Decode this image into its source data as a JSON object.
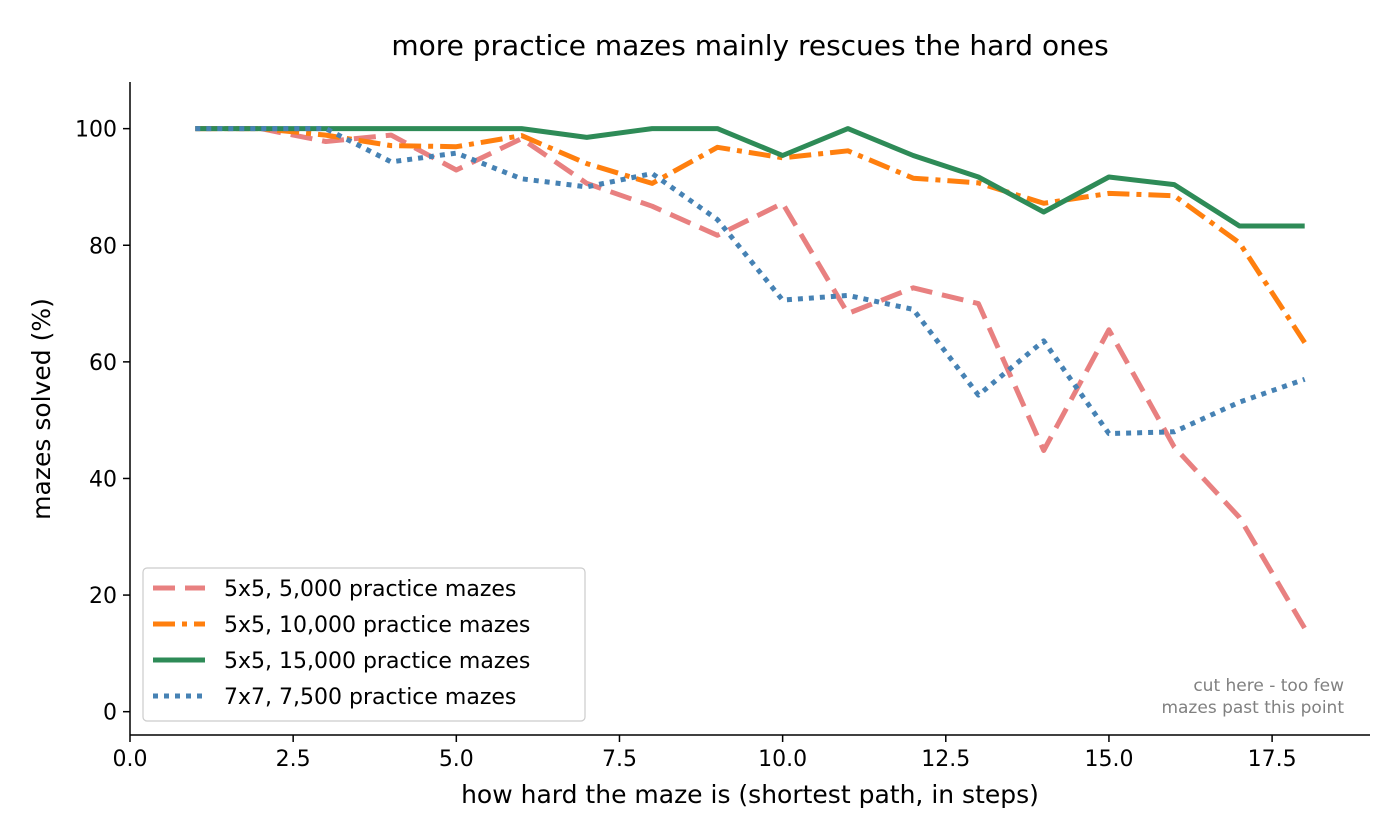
{
  "chart_data": {
    "type": "line",
    "title": "more practice mazes mainly rescues the hard ones",
    "xlabel": "how hard the maze is (shortest path, in steps)",
    "ylabel": "mazes solved (%)",
    "xlim": [
      0,
      19
    ],
    "ylim": [
      -4,
      108
    ],
    "xticks": [
      0,
      2.5,
      5,
      7.5,
      10,
      12.5,
      15,
      17.5
    ],
    "xtick_labels": [
      "0.0",
      "2.5",
      "5.0",
      "7.5",
      "10.0",
      "12.5",
      "15.0",
      "17.5"
    ],
    "yticks": [
      0,
      20,
      40,
      60,
      80,
      100
    ],
    "ytick_labels": [
      "0",
      "20",
      "40",
      "60",
      "80",
      "100"
    ],
    "grid": false,
    "legend_position": "lower-left",
    "x": [
      1,
      2,
      3,
      4,
      5,
      6,
      7,
      8,
      9,
      10,
      11,
      12,
      13,
      14,
      15,
      16,
      17,
      18
    ],
    "series": [
      {
        "name": "5x5, 5,000 practice mazes",
        "color": "#e88080",
        "style": "dashed",
        "values": [
          100,
          100,
          97.8,
          98.9,
          92.9,
          98.3,
          90.6,
          86.7,
          81.7,
          87.2,
          68.3,
          72.7,
          70,
          44.8,
          65.5,
          45.4,
          33.3,
          14.3
        ]
      },
      {
        "name": "5x5, 10,000 practice mazes",
        "color": "#ff7f0e",
        "style": "dashdot",
        "values": [
          100,
          100,
          98.9,
          97.1,
          96.9,
          98.8,
          94,
          90.6,
          96.8,
          95,
          96.2,
          91.5,
          90.7,
          87.2,
          88.9,
          88.5,
          80.4,
          63.3
        ]
      },
      {
        "name": "5x5, 15,000 practice mazes",
        "color": "#2e8b57",
        "style": "solid",
        "values": [
          100,
          100,
          100,
          100,
          100,
          100,
          98.5,
          100,
          100,
          95.4,
          100,
          95.4,
          91.7,
          85.7,
          91.7,
          90.4,
          83.3,
          83.3
        ]
      },
      {
        "name": "7x7, 7,500 practice mazes",
        "color": "#4682b4",
        "style": "dotted",
        "values": [
          100,
          100,
          100,
          94.3,
          95.8,
          91.4,
          90,
          92.3,
          84.4,
          70.6,
          71.4,
          69,
          54.3,
          63.6,
          47.7,
          48,
          53.1,
          57
        ]
      }
    ],
    "annotation": {
      "lines": [
        "cut here - too few",
        "mazes past this point"
      ],
      "position": "bottom-right"
    }
  }
}
